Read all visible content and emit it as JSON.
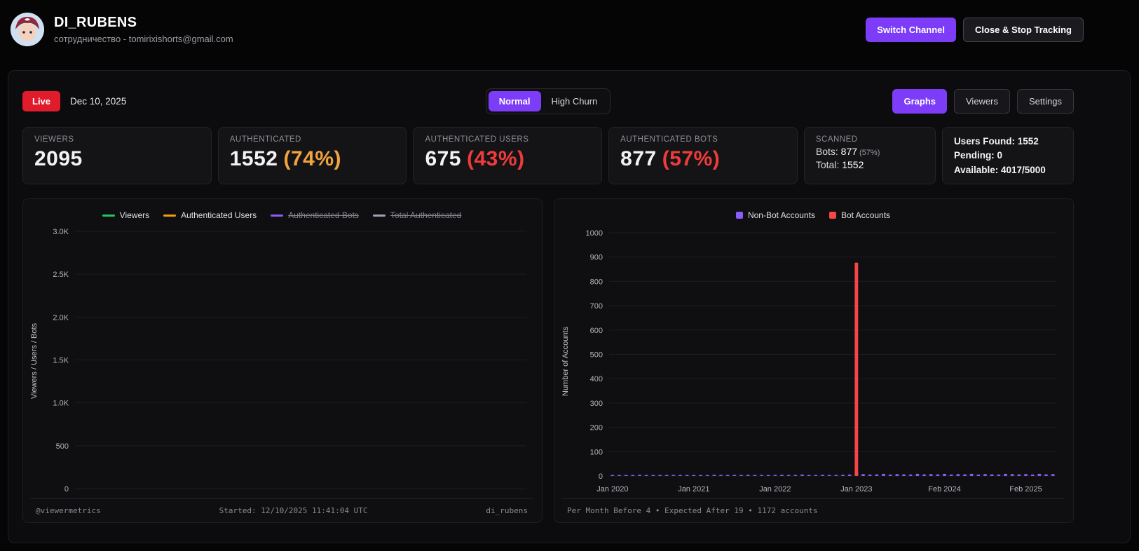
{
  "colors": {
    "accent_purple": "#7d3cf8",
    "live_red": "#e01b2c",
    "pct_orange": "#f2a33c",
    "pct_red": "#ef3b3b",
    "viewers_green": "#22c55e",
    "auth_users_orange": "#f59e0b",
    "bots_purple": "#8b5cf6",
    "bot_bar_red": "#f64646"
  },
  "header": {
    "title": "DI_RUBENS",
    "subtitle": "сотрудничество - tomirixishorts@gmail.com",
    "switch_channel_label": "Switch Channel",
    "close_stop_label": "Close & Stop Tracking"
  },
  "toolbar": {
    "live_label": "Live",
    "date": "Dec 10, 2025",
    "mode_normal": "Normal",
    "mode_high_churn": "High Churn",
    "tab_graphs": "Graphs",
    "tab_viewers": "Viewers",
    "tab_settings": "Settings"
  },
  "stats": {
    "viewers": {
      "label": "VIEWERS",
      "value": "2095"
    },
    "authenticated": {
      "label": "AUTHENTICATED",
      "value": "1552",
      "pct": "(74%)"
    },
    "auth_users": {
      "label": "AUTHENTICATED USERS",
      "value": "675",
      "pct": "(43%)"
    },
    "auth_bots": {
      "label": "AUTHENTICATED BOTS",
      "value": "877",
      "pct": "(57%)"
    },
    "scanned": {
      "label": "SCANNED",
      "bots_label": "Bots:",
      "bots_value": "877",
      "bots_pct": "(57%)",
      "total_label": "Total:",
      "total_value": "1552"
    },
    "summary": {
      "users_found_label": "Users Found:",
      "users_found_value": "1552",
      "pending_label": "Pending:",
      "pending_value": "0",
      "available_label": "Available:",
      "available_value": "4017/5000"
    }
  },
  "left_chart": {
    "ylabel": "Viewers / Users / Bots",
    "footer_left": "@viewermetrics",
    "footer_center": "Started: 12/10/2025 11:41:04 UTC",
    "footer_right": "di_rubens"
  },
  "right_chart": {
    "ylabel": "Number of Accounts",
    "footer": "Per Month Before 4 • Expected After 19 • 1172 accounts"
  },
  "chart_data": [
    {
      "type": "line",
      "ylabel": "Viewers / Users / Bots",
      "ylim": [
        0,
        3000
      ],
      "yticks": [
        {
          "value": 0,
          "label": "0"
        },
        {
          "value": 500,
          "label": "500"
        },
        {
          "value": 1000,
          "label": "1.0K"
        },
        {
          "value": 1500,
          "label": "1.5K"
        },
        {
          "value": 2000,
          "label": "2.0K"
        },
        {
          "value": 2500,
          "label": "2.5K"
        },
        {
          "value": 3000,
          "label": "3.0K"
        }
      ],
      "series": [
        {
          "name": "Viewers",
          "color": "#22c55e",
          "visible": true,
          "values": []
        },
        {
          "name": "Authenticated Users",
          "color": "#f59e0b",
          "visible": true,
          "values": []
        },
        {
          "name": "Authenticated Bots",
          "color": "#8b5cf6",
          "visible": false,
          "values": []
        },
        {
          "name": "Total Authenticated",
          "color": "#9ca3af",
          "visible": false,
          "values": []
        }
      ],
      "grid": true,
      "legend_position": "top"
    },
    {
      "type": "bar",
      "ylabel": "Number of Accounts",
      "ylim": [
        0,
        1000
      ],
      "ytick_step": 100,
      "n_months": 66,
      "x_start": "Jan 2020",
      "xticks": [
        {
          "label": "Jan 2020",
          "index": 0
        },
        {
          "label": "Jan 2021",
          "index": 12
        },
        {
          "label": "Jan 2022",
          "index": 24
        },
        {
          "label": "Jan 2023",
          "index": 36
        },
        {
          "label": "Feb 2024",
          "index": 49
        },
        {
          "label": "Feb 2025",
          "index": 61
        }
      ],
      "series": [
        {
          "name": "Non-Bot Accounts",
          "color": "#8b5cf6",
          "visible": true,
          "values": [
            3,
            2,
            4,
            3,
            5,
            2,
            3,
            4,
            2,
            3,
            4,
            3,
            2,
            4,
            3,
            5,
            3,
            2,
            4,
            3,
            5,
            2,
            3,
            4,
            3,
            5,
            4,
            3,
            6,
            4,
            3,
            5,
            4,
            3,
            5,
            6,
            19,
            8,
            6,
            7,
            9,
            6,
            8,
            7,
            6,
            9,
            7,
            8,
            7,
            9,
            6,
            8,
            7,
            9,
            6,
            8,
            7,
            6,
            9,
            8,
            7,
            8,
            6,
            9,
            7,
            8
          ]
        },
        {
          "name": "Bot Accounts",
          "color": "#f64646",
          "visible": true,
          "values": [
            0,
            0,
            0,
            0,
            0,
            0,
            0,
            0,
            0,
            0,
            0,
            0,
            0,
            0,
            0,
            0,
            0,
            0,
            0,
            0,
            0,
            0,
            0,
            0,
            0,
            0,
            0,
            0,
            0,
            0,
            0,
            0,
            0,
            0,
            0,
            0,
            877,
            0,
            0,
            0,
            0,
            0,
            0,
            0,
            0,
            0,
            0,
            0,
            0,
            0,
            0,
            0,
            0,
            0,
            0,
            0,
            0,
            0,
            0,
            0,
            0,
            0,
            0,
            0,
            0,
            0
          ]
        }
      ],
      "peak": {
        "month": "Jan 2023",
        "bot_accounts": 877
      },
      "grid": true,
      "legend_position": "top"
    }
  ]
}
